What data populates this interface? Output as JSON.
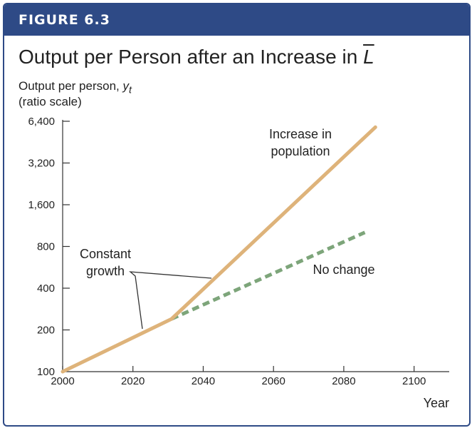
{
  "figure": {
    "label": "FIGURE 6.3",
    "title_main": "Output per Person after an Increase in ",
    "title_var": "L"
  },
  "axes": {
    "ylabel_line1": "Output per person, ",
    "ylabel_var": "y",
    "ylabel_sub": "t",
    "ylabel_line2": "(ratio scale)",
    "xlabel": "Year"
  },
  "colors": {
    "header": "#2e4a86",
    "increase_line": "#deb37a",
    "no_change_line": "#7da57a",
    "axis": "#333333"
  },
  "chart_data": {
    "type": "line",
    "y_scale": "log2",
    "xlim": [
      2000,
      2110
    ],
    "ylim": [
      100,
      6400
    ],
    "x_ticks": [
      2000,
      2020,
      2040,
      2060,
      2080,
      2100
    ],
    "y_ticks": [
      100,
      200,
      400,
      800,
      1600,
      3200,
      6400
    ],
    "x_tick_labels": [
      "2000",
      "2020",
      "2040",
      "2060",
      "2080",
      "2100"
    ],
    "y_tick_labels": [
      "100",
      "200",
      "400",
      "800",
      "1,600",
      "3,200",
      "6,400"
    ],
    "series": [
      {
        "name": "Increase in population",
        "style": "solid",
        "color": "#deb37a",
        "points": [
          [
            2000,
            100
          ],
          [
            2031,
            240
          ],
          [
            2089,
            5800
          ]
        ]
      },
      {
        "name": "No change",
        "style": "dashed",
        "color": "#7da57a",
        "points": [
          [
            2031,
            240
          ],
          [
            2086,
            1010
          ]
        ]
      }
    ],
    "annotations": [
      {
        "lines": [
          "Increase in",
          "population"
        ]
      },
      {
        "lines": [
          "No change"
        ]
      },
      {
        "lines": [
          "Constant",
          "growth"
        ]
      }
    ]
  }
}
